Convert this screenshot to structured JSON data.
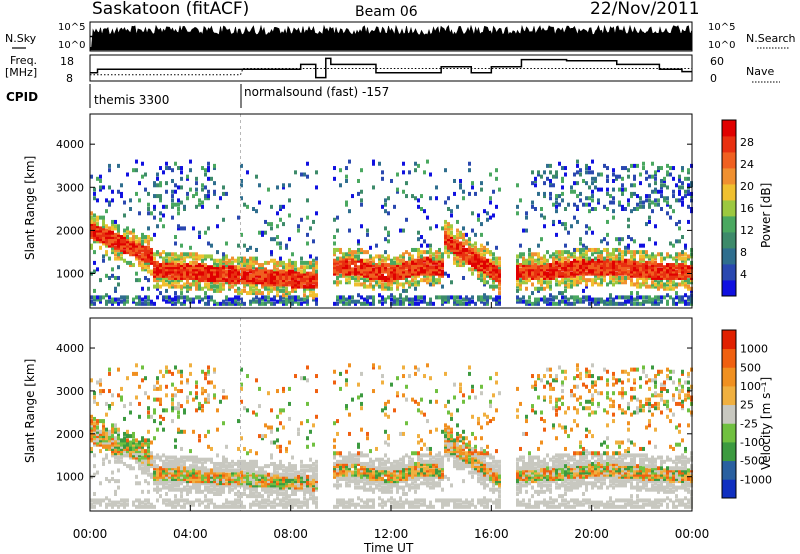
{
  "header": {
    "title": "Saskatoon (fitACF)",
    "beam": "Beam 06",
    "date": "22/Nov/2011"
  },
  "status_panel": {
    "nsky_label": "N.Sky",
    "nsky_ticks": [
      "10^5",
      "10^0"
    ],
    "nsearch_label": "N.Search",
    "nsearch_ticks": [
      "10^5",
      "10^0"
    ],
    "freq_label_1": "Freq.",
    "freq_label_2": "[MHz]",
    "freq_ticks": [
      "18",
      "8"
    ],
    "nave_label": "Nave",
    "nave_ticks": [
      "60",
      "0"
    ],
    "cpid_label": "CPID",
    "cpid_1": "themis 3300",
    "cpid_2": "normalsound (fast) -157"
  },
  "colors": {
    "power_scale": [
      "#1010e0",
      "#2a48b0",
      "#2f6e8e",
      "#3d8a6a",
      "#4aa860",
      "#9cc840",
      "#f0c030",
      "#f09030",
      "#f06020",
      "#e83010",
      "#e00000"
    ],
    "velocity_scale": [
      "#1030c0",
      "#2a60a0",
      "#3c9a40",
      "#70c040",
      "#c8c8c0",
      "#f0b040",
      "#f09020",
      "#f06010",
      "#e02000"
    ]
  },
  "chart_data": [
    {
      "type": "heatmap",
      "name": "power",
      "xlabel": "",
      "ylabel": "Slant Range [km]",
      "y_ticks": [
        "1000",
        "2000",
        "3000",
        "4000"
      ],
      "ylim": [
        200,
        4700
      ],
      "xlim": [
        0,
        24
      ],
      "colorbar_label": "Power [dB]",
      "colorbar_ticks": [
        "4",
        "8",
        "12",
        "16",
        "20",
        "24",
        "28"
      ]
    },
    {
      "type": "heatmap",
      "name": "velocity",
      "xlabel": "Time UT",
      "ylabel": "Slant Range [km]",
      "y_ticks": [
        "1000",
        "2000",
        "3000",
        "4000"
      ],
      "ylim": [
        200,
        4700
      ],
      "xlim": [
        0,
        24
      ],
      "x_ticks": [
        "00:00",
        "04:00",
        "08:00",
        "12:00",
        "16:00",
        "20:00",
        "00:00"
      ],
      "colorbar_label": "Velocity [m s⁻¹]",
      "colorbar_ticks": [
        "-1000",
        "-500",
        "-100",
        "-25",
        "25",
        "100",
        "500",
        "1000"
      ]
    }
  ]
}
